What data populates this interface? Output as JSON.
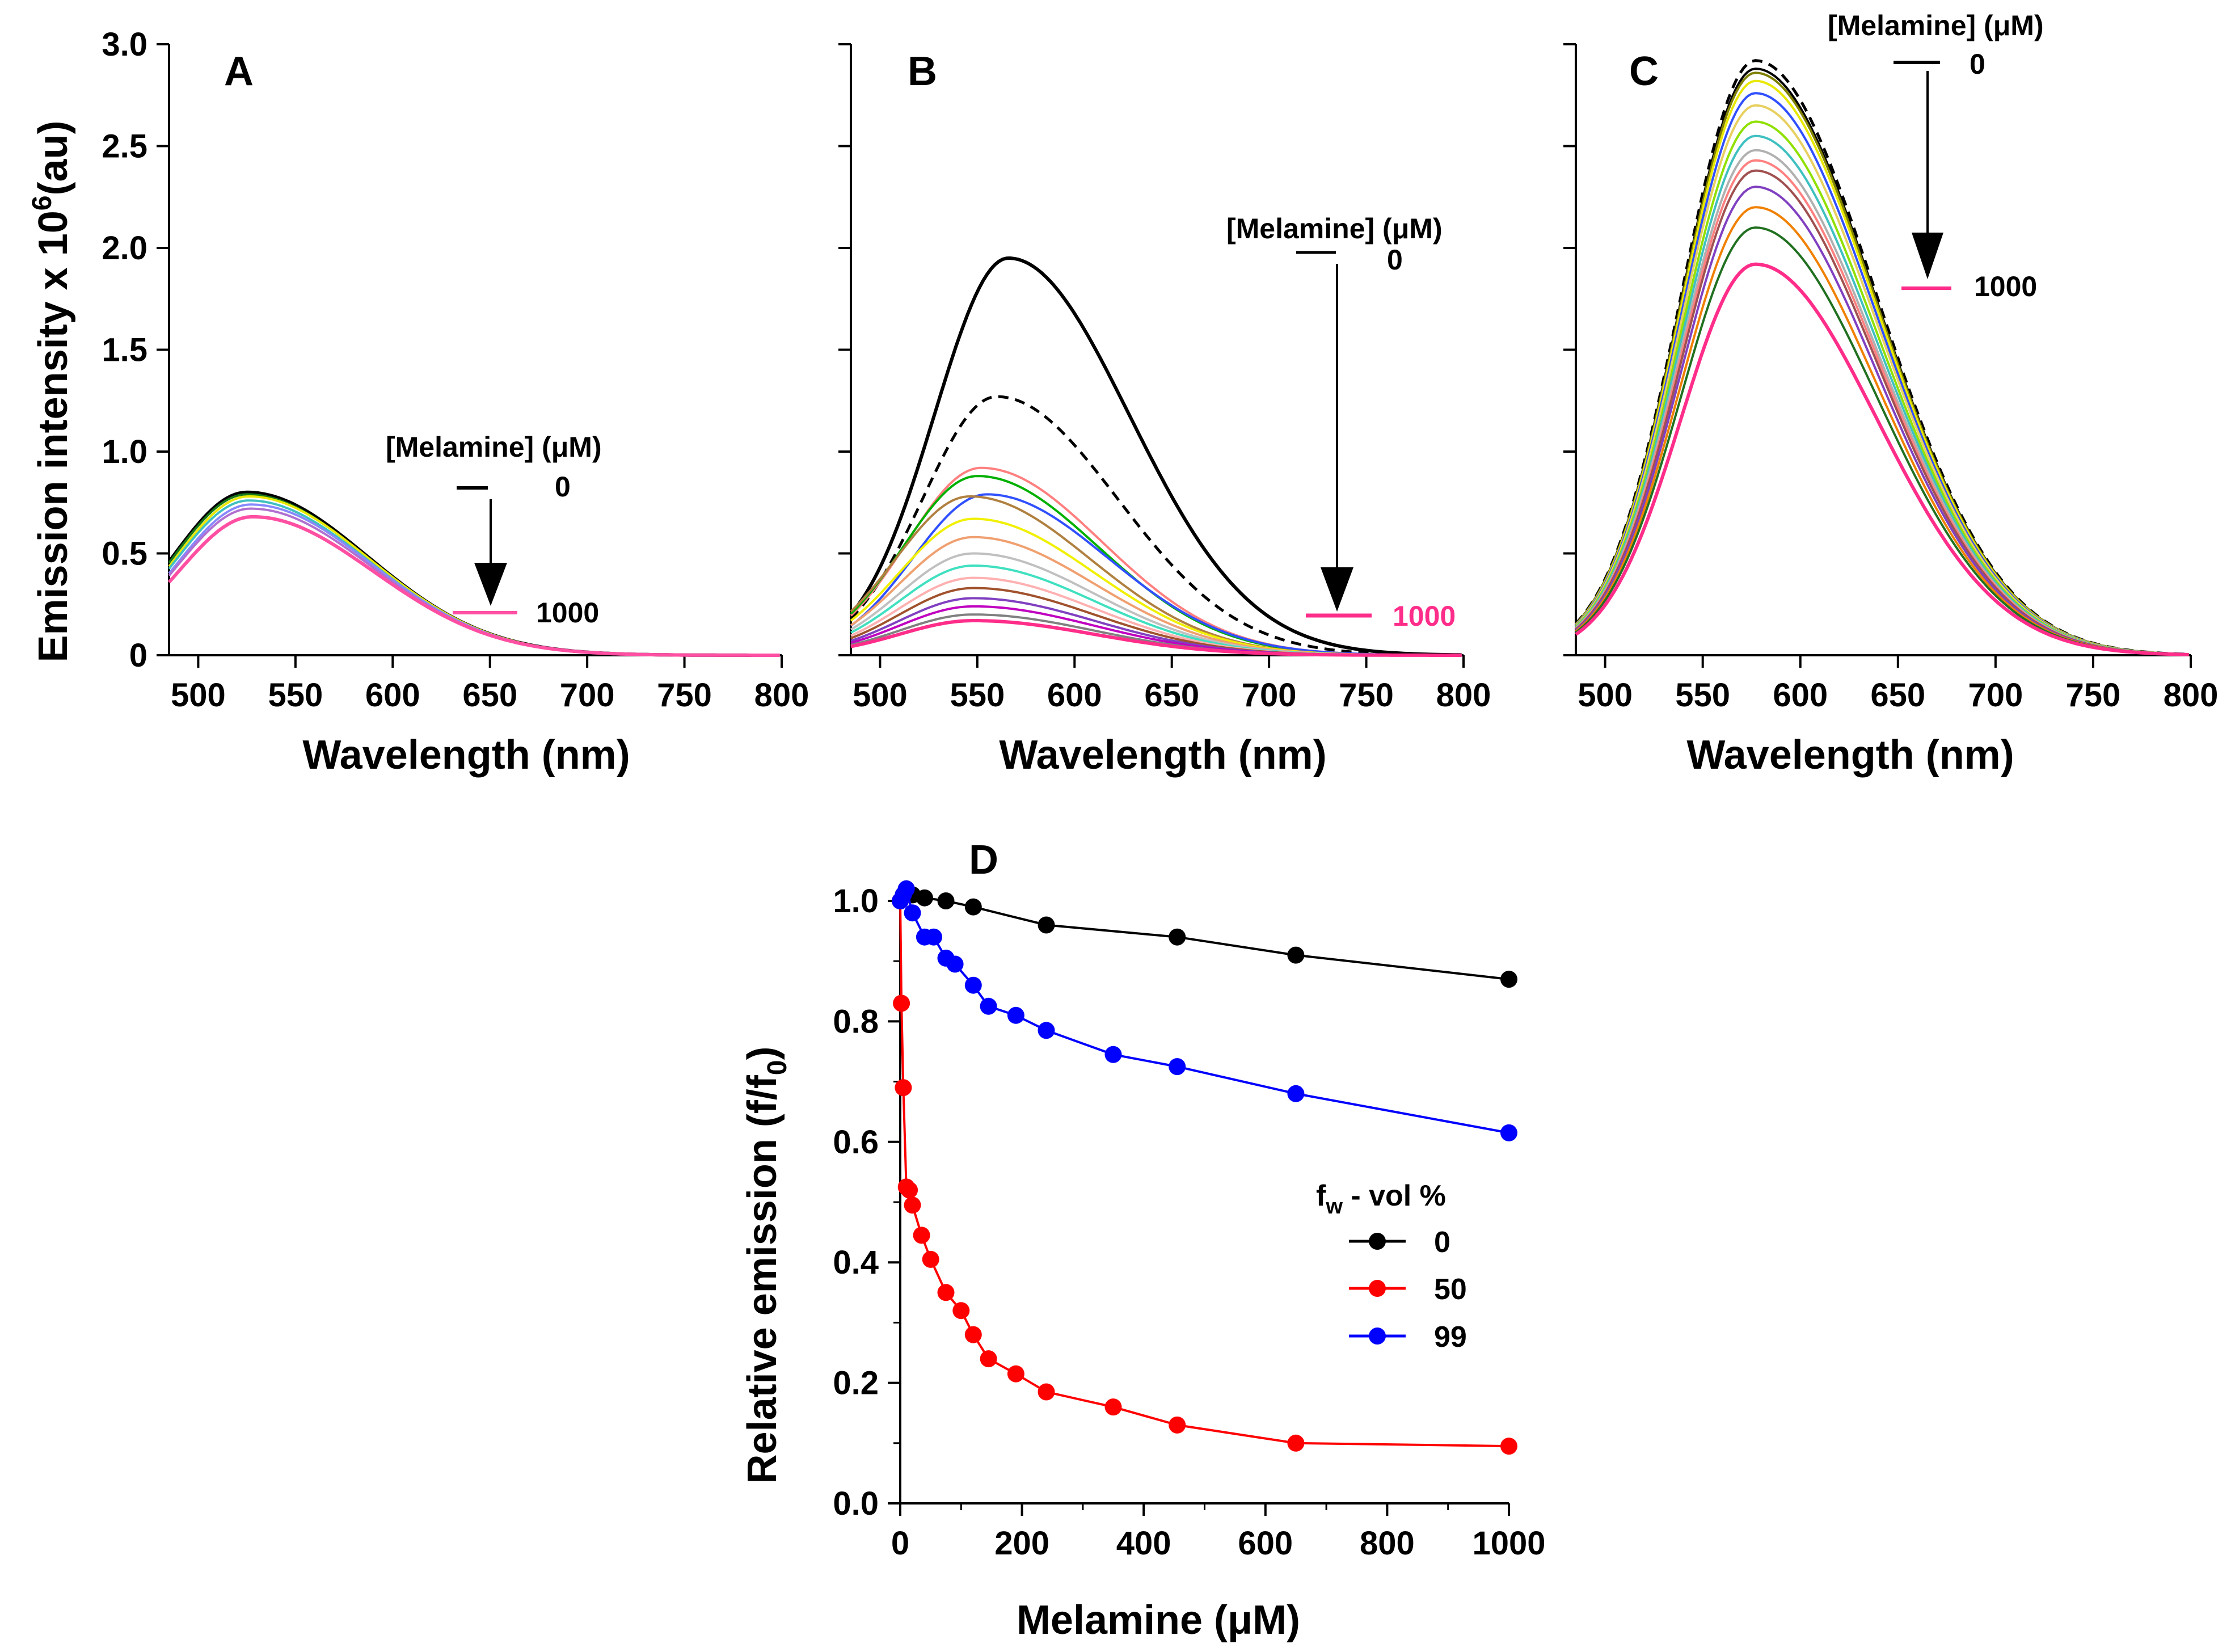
{
  "chart_data": [
    {
      "id": "A",
      "type": "line",
      "panel_label": "A",
      "xlabel": "Wavelength (nm)",
      "ylabel_main": "Emission intensity x 10",
      "ylabel_sup": "6",
      "ylabel_tail": "(au)",
      "xlim": [
        485,
        800
      ],
      "ylim": [
        0,
        3.0
      ],
      "xticks": [
        500,
        550,
        600,
        650,
        700,
        750,
        800
      ],
      "yticks": [
        "0",
        "0.5",
        "1.0",
        "1.5",
        "2.0",
        "2.5",
        "3.0"
      ],
      "annotation": {
        "title": "[Melamine] (μM)",
        "start_label": "0",
        "end_label": "1000",
        "start_color": "#000000",
        "end_color": "#ff4fa3"
      },
      "curves": [
        {
          "peak": 0.8,
          "center": 525,
          "color": "#000000"
        },
        {
          "peak": 0.79,
          "center": 525,
          "color": "#1a7a1a"
        },
        {
          "peak": 0.78,
          "center": 526,
          "color": "#e8e800"
        },
        {
          "peak": 0.76,
          "center": 526,
          "color": "#40c0c0"
        },
        {
          "peak": 0.74,
          "center": 527,
          "color": "#8888ff"
        },
        {
          "peak": 0.72,
          "center": 527,
          "color": "#b070d0"
        },
        {
          "peak": 0.68,
          "center": 528,
          "color": "#ff4fa3"
        }
      ]
    },
    {
      "id": "B",
      "type": "line",
      "panel_label": "B",
      "xlabel": "Wavelength (nm)",
      "xlim": [
        485,
        800
      ],
      "ylim": [
        0,
        3.0
      ],
      "xticks": [
        500,
        550,
        600,
        650,
        700,
        750,
        800
      ],
      "annotation": {
        "title": "[Melamine] (μM)",
        "start_label": "0",
        "end_label": "1000",
        "start_color": "#000000",
        "end_color": "#ff2d8a"
      },
      "curves": [
        {
          "peak": 1.95,
          "center": 566,
          "color": "#000000",
          "dash": false
        },
        {
          "peak": 1.27,
          "center": 560,
          "color": "#000000",
          "dash": true
        },
        {
          "peak": 0.92,
          "center": 552,
          "color": "#ff7f7f"
        },
        {
          "peak": 0.88,
          "center": 550,
          "color": "#00b000"
        },
        {
          "peak": 0.79,
          "center": 555,
          "color": "#3050ff"
        },
        {
          "peak": 0.78,
          "center": 546,
          "color": "#b08040"
        },
        {
          "peak": 0.67,
          "center": 548,
          "color": "#f0f000"
        },
        {
          "peak": 0.58,
          "center": 548,
          "color": "#f0a070"
        },
        {
          "peak": 0.5,
          "center": 548,
          "color": "#c0c0c0"
        },
        {
          "peak": 0.44,
          "center": 548,
          "color": "#40e0c0"
        },
        {
          "peak": 0.38,
          "center": 548,
          "color": "#ffb0b0"
        },
        {
          "peak": 0.33,
          "center": 548,
          "color": "#a0522d"
        },
        {
          "peak": 0.28,
          "center": 548,
          "color": "#8040c0"
        },
        {
          "peak": 0.24,
          "center": 548,
          "color": "#c000c0"
        },
        {
          "peak": 0.2,
          "center": 548,
          "color": "#808080"
        },
        {
          "peak": 0.17,
          "center": 548,
          "color": "#ff2d8a"
        }
      ]
    },
    {
      "id": "C",
      "type": "line",
      "panel_label": "C",
      "xlabel": "Wavelength (nm)",
      "xlim": [
        485,
        800
      ],
      "ylim": [
        0,
        3.0
      ],
      "xticks": [
        500,
        550,
        600,
        650,
        700,
        750,
        800
      ],
      "annotation": {
        "title": "[Melamine] (μM)",
        "start_label": "0",
        "end_label": "1000",
        "start_color": "#000000",
        "end_color": "#ff2d8a"
      },
      "curves": [
        {
          "peak": 2.92,
          "center": 577,
          "color": "#000000",
          "dash": true
        },
        {
          "peak": 2.88,
          "center": 577,
          "color": "#000000"
        },
        {
          "peak": 2.86,
          "center": 577,
          "color": "#808000"
        },
        {
          "peak": 2.82,
          "center": 577,
          "color": "#e8e800"
        },
        {
          "peak": 2.76,
          "center": 577,
          "color": "#3050ff"
        },
        {
          "peak": 2.7,
          "center": 577,
          "color": "#e8d060"
        },
        {
          "peak": 2.62,
          "center": 577,
          "color": "#90e000"
        },
        {
          "peak": 2.55,
          "center": 577,
          "color": "#40c0c0"
        },
        {
          "peak": 2.48,
          "center": 577,
          "color": "#b0b0b0"
        },
        {
          "peak": 2.43,
          "center": 577,
          "color": "#ff8080"
        },
        {
          "peak": 2.38,
          "center": 577,
          "color": "#a05050"
        },
        {
          "peak": 2.3,
          "center": 577,
          "color": "#8040c0"
        },
        {
          "peak": 2.2,
          "center": 577,
          "color": "#f08000"
        },
        {
          "peak": 2.1,
          "center": 577,
          "color": "#207020"
        },
        {
          "peak": 1.92,
          "center": 577,
          "color": "#ff2d8a"
        }
      ]
    },
    {
      "id": "D",
      "type": "scatter",
      "panel_label": "D",
      "xlabel": "Melamine (μM)",
      "ylabel_main": "Relative emission (f/f",
      "ylabel_sub": "0",
      "ylabel_tail": ")",
      "xlim": [
        0,
        1000
      ],
      "ylim": [
        0,
        1.0
      ],
      "xticks": [
        "0",
        "200",
        "400",
        "600",
        "800",
        "1000"
      ],
      "yticks": [
        "0.0",
        "0.2",
        "0.4",
        "0.6",
        "0.8",
        "1.0"
      ],
      "legend": {
        "title_main": "f",
        "title_sub": "w",
        "title_tail": " - vol %"
      },
      "series": [
        {
          "name": "0",
          "color": "#000000",
          "x": [
            0,
            5,
            10,
            20,
            40,
            75,
            120,
            240,
            455,
            650,
            1000
          ],
          "y": [
            1.0,
            1.01,
            1.02,
            1.01,
            1.005,
            1.0,
            0.99,
            0.96,
            0.94,
            0.91,
            0.87
          ]
        },
        {
          "name": "50",
          "color": "#ff0000",
          "x": [
            0,
            2,
            5,
            10,
            15,
            20,
            35,
            50,
            75,
            100,
            120,
            145,
            190,
            240,
            350,
            455,
            650,
            1000
          ],
          "y": [
            1.0,
            0.83,
            0.69,
            0.525,
            0.52,
            0.495,
            0.445,
            0.405,
            0.35,
            0.32,
            0.28,
            0.24,
            0.215,
            0.185,
            0.16,
            0.13,
            0.1,
            0.095
          ]
        },
        {
          "name": "99",
          "color": "#0000ff",
          "x": [
            0,
            5,
            10,
            20,
            40,
            55,
            75,
            90,
            120,
            145,
            190,
            240,
            350,
            455,
            650,
            1000
          ],
          "y": [
            1.0,
            1.01,
            1.02,
            0.98,
            0.94,
            0.94,
            0.905,
            0.895,
            0.86,
            0.825,
            0.81,
            0.785,
            0.745,
            0.725,
            0.68,
            0.615
          ]
        }
      ]
    }
  ]
}
